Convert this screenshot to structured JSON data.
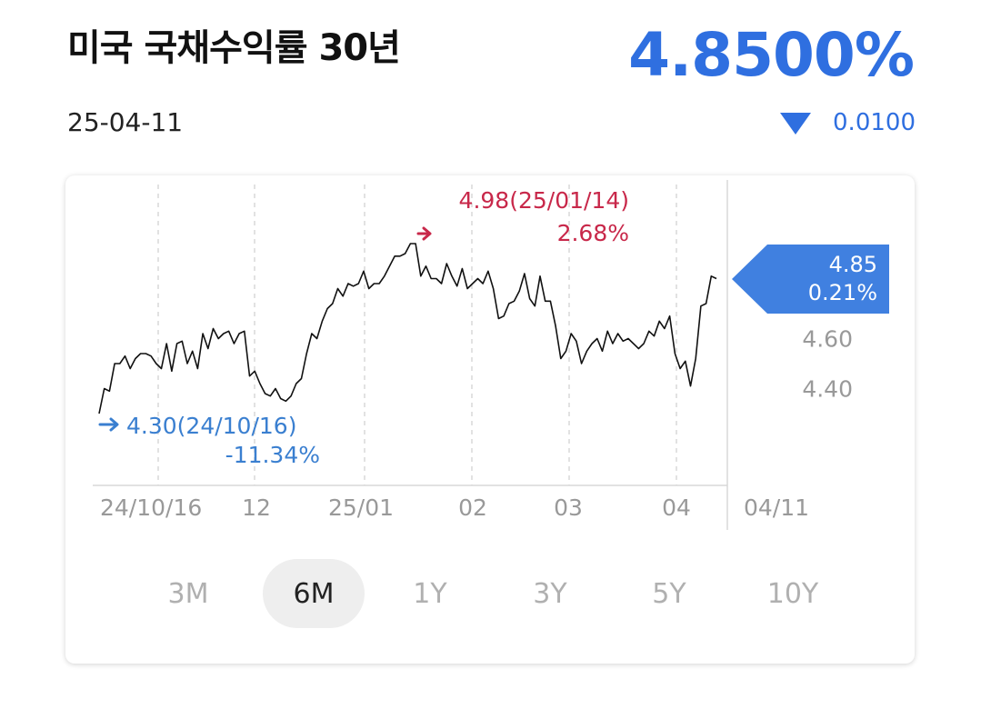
{
  "header": {
    "title": "미국 국채수익률 30년",
    "date": "25-04-11",
    "price": "4.8500%",
    "change": "0.0100",
    "change_direction": "down",
    "accent_color": "#2f6fe0",
    "down_color": "#2f6fe0",
    "up_color": "#c8284a"
  },
  "chart_data": {
    "type": "line",
    "x_tick_labels": [
      "24/10/16",
      "12",
      "25/01",
      "02",
      "03",
      "04",
      "04/11"
    ],
    "y_tick_labels": [
      "4.60",
      "4.40"
    ],
    "y_ticks": [
      4.6,
      4.4
    ],
    "ylim": [
      4.2,
      5.1
    ],
    "series": [
      {
        "values": [
          4.3,
          4.4,
          4.39,
          4.5,
          4.5,
          4.53,
          4.48,
          4.52,
          4.54,
          4.54,
          4.53,
          4.5,
          4.48,
          4.58,
          4.47,
          4.58,
          4.59,
          4.5,
          4.55,
          4.48,
          4.62,
          4.56,
          4.64,
          4.6,
          4.62,
          4.63,
          4.58,
          4.62,
          4.63,
          4.45,
          4.47,
          4.42,
          4.38,
          4.37,
          4.4,
          4.36,
          4.35,
          4.37,
          4.42,
          4.44,
          4.54,
          4.62,
          4.6,
          4.67,
          4.72,
          4.74,
          4.8,
          4.77,
          4.82,
          4.81,
          4.82,
          4.87,
          4.8,
          4.82,
          4.82,
          4.85,
          4.89,
          4.93,
          4.93,
          4.94,
          4.98,
          4.98,
          4.85,
          4.89,
          4.84,
          4.84,
          4.82,
          4.9,
          4.85,
          4.81,
          4.88,
          4.8,
          4.82,
          4.84,
          4.82,
          4.87,
          4.8,
          4.68,
          4.69,
          4.74,
          4.75,
          4.79,
          4.86,
          4.76,
          4.73,
          4.85,
          4.75,
          4.75,
          4.65,
          4.52,
          4.55,
          4.62,
          4.59,
          4.5,
          4.55,
          4.58,
          4.6,
          4.55,
          4.63,
          4.58,
          4.62,
          4.59,
          4.6,
          4.58,
          4.56,
          4.58,
          4.63,
          4.61,
          4.67,
          4.64,
          4.69,
          4.54,
          4.48,
          4.51,
          4.41,
          4.52,
          4.73,
          4.74,
          4.85,
          4.84
        ]
      }
    ],
    "annotations": {
      "high": {
        "value_text": "4.98(25/01/14)",
        "pct_text": "2.68%",
        "color": "#c8284a"
      },
      "low": {
        "value_text": "4.30(24/10/16)",
        "pct_text": "-11.34%",
        "color": "#3a7fd0"
      },
      "last": {
        "value_text": "4.85",
        "pct_text": "0.21%",
        "color": "#3a7fd0"
      }
    }
  },
  "range_tabs": [
    "3M",
    "6M",
    "1Y",
    "3Y",
    "5Y",
    "10Y"
  ],
  "active_tab": "6M"
}
